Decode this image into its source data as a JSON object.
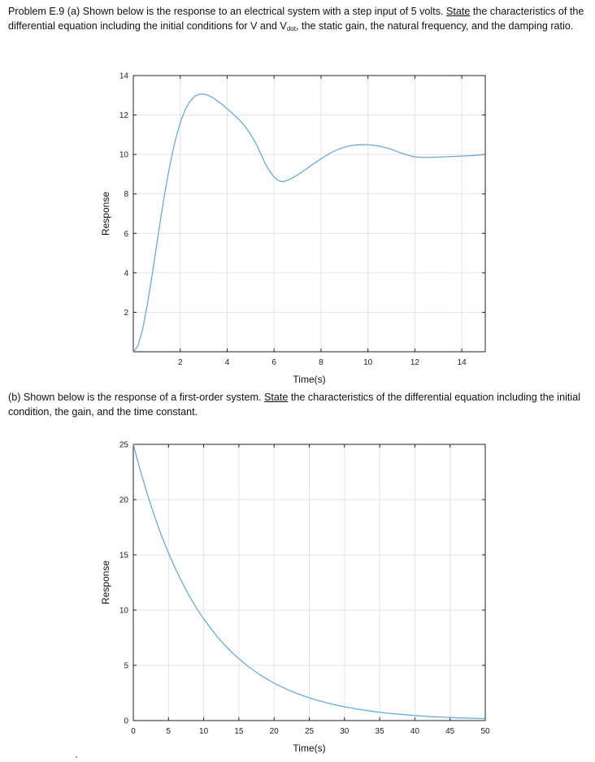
{
  "problem": {
    "part_a": {
      "lead": "Problem E.9 (a) Shown below is the response to an electrical system with a step input of 5 volts.",
      "state_word": "State",
      "text_1": "the characteristics of the differential equation including the initial conditions for V and V",
      "subscript": "dot",
      "text_2": ", the static gain, the natural frequency, and the damping ratio."
    },
    "part_b": {
      "lead": "(b) Shown below is the response of a first-order system.",
      "state_word": "State",
      "text": "the characteristics of the differential equation including the initial condition, the gain, and the time constant."
    }
  },
  "chart_data": [
    {
      "type": "line",
      "title": "",
      "xlabel": "Time(s)",
      "ylabel": "Response",
      "xlim": [
        0,
        15
      ],
      "ylim": [
        0,
        14
      ],
      "xticks": [
        2,
        4,
        6,
        8,
        10,
        12,
        14
      ],
      "xtick_labels": [
        "2",
        "4",
        "6",
        "8",
        "10",
        "12",
        "14"
      ],
      "yticks": [
        2,
        4,
        6,
        8,
        10,
        12,
        14
      ],
      "ytick_labels": [
        "2",
        "4",
        "6",
        "8",
        "10",
        "12",
        "14"
      ],
      "grid": true,
      "series_color": "#5aa7d8",
      "series": [
        {
          "x": [
            0,
            0.2,
            0.4,
            0.6,
            0.8,
            1.0,
            1.2,
            1.4,
            1.6,
            1.8,
            2.0,
            2.2,
            2.4,
            2.6,
            2.8,
            3.0,
            3.2,
            3.4,
            3.6,
            3.8,
            4.0,
            4.2,
            4.4,
            4.6,
            4.8,
            5.0,
            5.2,
            5.4,
            5.6,
            5.8,
            6.0,
            6.2,
            6.4,
            6.6,
            6.8,
            7.0,
            7.2,
            7.4,
            7.6,
            7.8,
            8.0,
            8.2,
            8.4,
            8.6,
            8.8,
            9.0,
            9.2,
            9.4,
            9.6,
            9.8,
            10.0,
            10.2,
            10.4,
            10.6,
            10.8,
            11.0,
            11.2,
            11.4,
            11.6,
            11.8,
            12.0,
            12.2,
            12.4,
            12.6,
            12.8,
            13.0,
            13.2,
            13.4,
            13.6,
            13.8,
            14.0,
            14.2,
            14.4,
            14.6,
            14.8,
            15.0
          ],
          "y": [
            0,
            0.3,
            1.15,
            2.39,
            3.87,
            5.45,
            7.0,
            8.44,
            9.71,
            10.77,
            11.61,
            12.24,
            12.67,
            12.93,
            13.05,
            13.06,
            12.99,
            12.87,
            12.7,
            12.52,
            12.32,
            12.11,
            11.89,
            11.65,
            11.36,
            11.02,
            10.61,
            10.12,
            9.59,
            9.18,
            8.85,
            8.66,
            8.62,
            8.7,
            8.82,
            8.96,
            9.12,
            9.29,
            9.46,
            9.62,
            9.78,
            9.93,
            10.07,
            10.19,
            10.29,
            10.37,
            10.43,
            10.47,
            10.49,
            10.5,
            10.49,
            10.47,
            10.44,
            10.39,
            10.33,
            10.26,
            10.17,
            10.08,
            10.0,
            9.93,
            9.88,
            9.86,
            9.85,
            9.85,
            9.86,
            9.87,
            9.88,
            9.89,
            9.9,
            9.91,
            9.92,
            9.93,
            9.94,
            9.96,
            9.98,
            10.0
          ]
        }
      ]
    },
    {
      "type": "line",
      "title": "",
      "xlabel": "Time(s)",
      "ylabel": "Response",
      "xlim": [
        0,
        50
      ],
      "ylim": [
        0,
        25
      ],
      "xticks": [
        0,
        5,
        10,
        15,
        20,
        25,
        30,
        35,
        40,
        45,
        50
      ],
      "xtick_labels": [
        "0",
        "5",
        "10",
        "15",
        "20",
        "25",
        "30",
        "35",
        "40",
        "45",
        "50"
      ],
      "yticks": [
        0,
        5,
        10,
        15,
        20,
        25
      ],
      "ytick_labels": [
        "0",
        "5",
        "10",
        "15",
        "20",
        "25"
      ],
      "grid": true,
      "series_color": "#5aa7d8",
      "series": [
        {
          "x": [
            0,
            1,
            2,
            3,
            4,
            5,
            6,
            7,
            8,
            9,
            10,
            12,
            14,
            16,
            18,
            20,
            22,
            24,
            26,
            28,
            30,
            32,
            34,
            36,
            38,
            40,
            42,
            44,
            46,
            48,
            50
          ],
          "y": [
            25,
            22.62,
            20.47,
            18.52,
            16.76,
            15.16,
            13.72,
            12.42,
            11.23,
            10.16,
            9.2,
            7.53,
            6.16,
            5.05,
            4.13,
            3.38,
            2.77,
            2.27,
            1.86,
            1.52,
            1.24,
            1.02,
            0.84,
            0.68,
            0.56,
            0.46,
            0.37,
            0.31,
            0.25,
            0.21,
            0.17
          ]
        }
      ]
    }
  ]
}
